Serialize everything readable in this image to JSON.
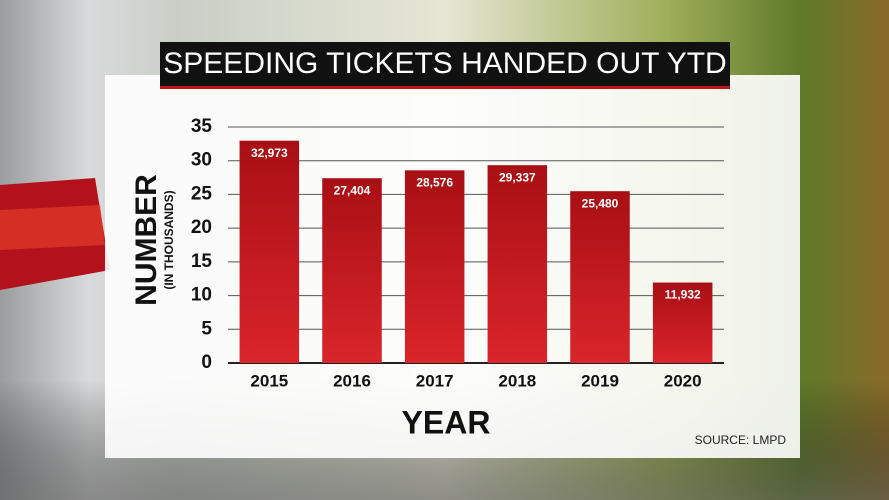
{
  "chart_data": {
    "type": "bar",
    "title": "SPEEDING TICKETS HANDED OUT YTD",
    "y_label": "NUMBER",
    "y_sublabel": "(IN THOUSANDS)",
    "x_label": "YEAR",
    "source": "SOURCE: LMPD",
    "categories": [
      "2015",
      "2016",
      "2017",
      "2018",
      "2019",
      "2020"
    ],
    "values": [
      32.973,
      27.404,
      28.576,
      29.337,
      25.48,
      11.932
    ],
    "value_labels": [
      "32,973",
      "27,404",
      "28,576",
      "29,337",
      "25,480",
      "11,932"
    ],
    "color": "#a80f14",
    "ylim": [
      0,
      35
    ],
    "yticks": [
      0,
      5,
      10,
      15,
      20,
      25,
      30,
      35
    ],
    "grid": true
  }
}
